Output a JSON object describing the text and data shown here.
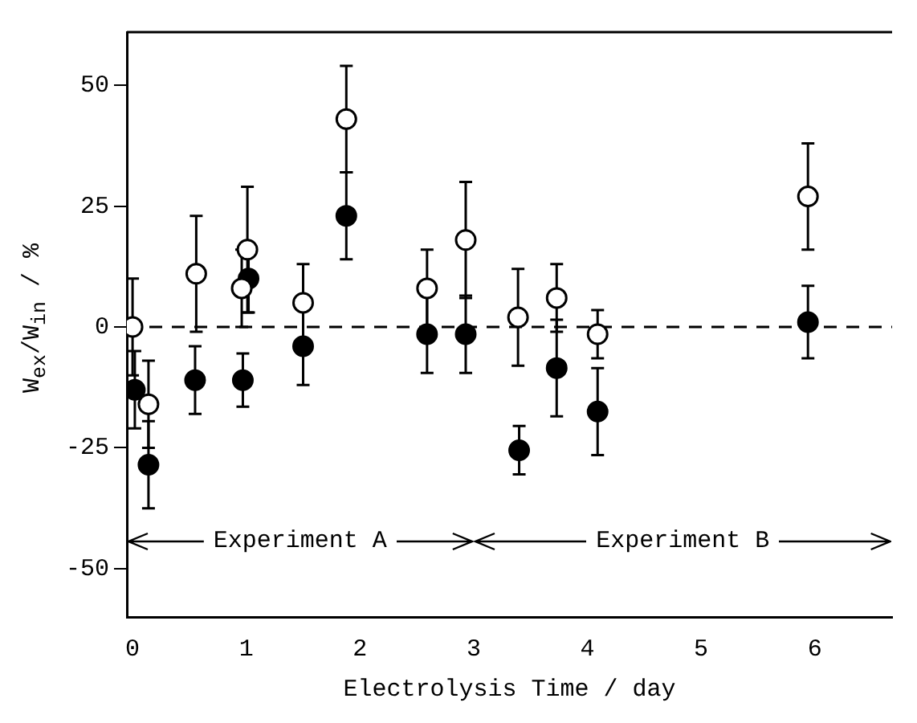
{
  "chart_data": {
    "type": "scatter",
    "xlabel": "Electrolysis Time / day",
    "ylabel": "W$_{ex}$/W$_{in}$ / %",
    "xlim": [
      -0.05,
      6.68
    ],
    "xticks": [
      0,
      1,
      2,
      3,
      4,
      5,
      6
    ],
    "ylim": [
      -60,
      61
    ],
    "yticks": [
      -50,
      -25,
      0,
      25,
      50
    ],
    "grid": false,
    "legend": false,
    "marker": "circle",
    "series": [
      {
        "color": "#000000",
        "x": [
          0,
          0.14,
          0.56,
          0.96,
          1.01,
          1.5,
          1.88,
          2.59,
          2.93,
          3.39,
          3.73,
          4.09,
          5.94
        ],
        "values": [
          0,
          -16,
          11,
          8,
          16,
          5,
          43,
          8,
          18,
          2,
          6,
          -1.5,
          27
        ],
        "errors": [
          10,
          9,
          12,
          8,
          13,
          8,
          11,
          8,
          12,
          10,
          7,
          5,
          11
        ]
      },
      {
        "color": "#000000",
        "x": [
          0.02,
          0.14,
          0.55,
          0.97,
          1.02,
          1.5,
          1.88,
          2.59,
          2.93,
          3.4,
          3.73,
          4.09,
          5.94
        ],
        "values": [
          -13,
          -28.5,
          -11,
          -11,
          10,
          -4,
          23,
          -1.5,
          -1.5,
          -25.5,
          -8.5,
          -17.5,
          1
        ],
        "errors": [
          8,
          9,
          7,
          5.5,
          7,
          8,
          9,
          8,
          8,
          5,
          10,
          9,
          7.5
        ]
      }
    ],
    "ref_lines": [
      {
        "axis": "y",
        "value": 0,
        "color": "#000000",
        "line_style": "dashed"
      }
    ],
    "annotations": [
      "Experiment A",
      "Experiment B"
    ]
  }
}
